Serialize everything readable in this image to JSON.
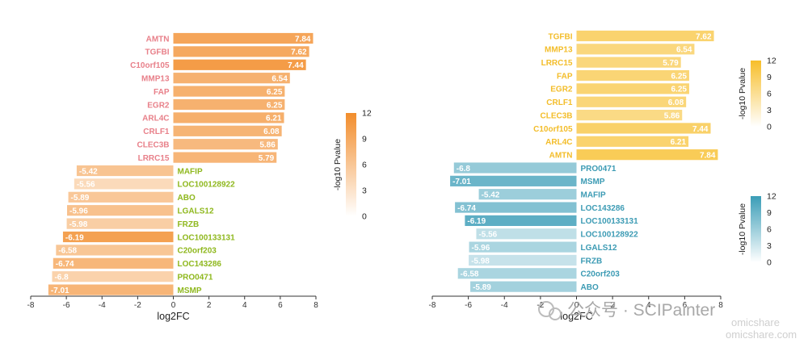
{
  "chart_data": [
    {
      "type": "bar",
      "orientation": "horizontal",
      "xlabel": "log2FC",
      "xlim": [
        -8,
        8
      ],
      "xticks": [
        "-8",
        "-6",
        "-4",
        "-2",
        "0",
        "2",
        "4",
        "6",
        "8"
      ],
      "legend": {
        "title": "-log10 Pvalue",
        "ticks": [
          "12",
          "9",
          "6",
          "3",
          "0"
        ],
        "range": [
          0,
          12
        ],
        "placement": "right"
      },
      "up_label_color": "#e8808a",
      "down_label_color": "#8fb81e",
      "colors": {
        "high": "#f28d2c",
        "low": "#ffffff"
      },
      "categories": [
        "AMTN",
        "TGFBI",
        "C10orf105",
        "MMP13",
        "FAP",
        "EGR2",
        "ARL4C",
        "CRLF1",
        "CLEC3B",
        "LRRC15",
        "MAFIP",
        "LOC100128922",
        "ABO",
        "LGALS12",
        "FRZB",
        "LOC100133131",
        "C20orf203",
        "LOC143286",
        "PRO0471",
        "MSMP"
      ],
      "values": [
        7.84,
        7.62,
        7.44,
        6.54,
        6.25,
        6.25,
        6.21,
        6.08,
        5.86,
        5.79,
        -5.42,
        -5.56,
        -5.89,
        -5.96,
        -5.98,
        -6.19,
        -6.58,
        -6.74,
        -6.8,
        -7.01
      ],
      "value_labels": [
        "7.84",
        "7.62",
        "7.44",
        "6.54",
        "6.25",
        "6.25",
        "6.21",
        "6.08",
        "5.86",
        "5.79",
        "-5.42",
        "-5.56",
        "-5.89",
        "-5.96",
        "-5.98",
        "-6.19",
        "-6.58",
        "-6.74",
        "-6.8",
        "-7.01"
      ],
      "neglog10_pvalue": [
        9.0,
        8.5,
        10.2,
        7.5,
        7.6,
        7.5,
        7.8,
        7.2,
        6.5,
        7.0,
        5.2,
        2.5,
        4.8,
        5.5,
        4.0,
        9.5,
        5.0,
        6.8,
        3.5,
        7.0
      ]
    },
    {
      "type": "bar",
      "orientation": "horizontal",
      "xlabel": "log2FC",
      "xlim": [
        -8,
        8
      ],
      "xticks": [
        "-8",
        "-6",
        "-4",
        "-2",
        "0",
        "2",
        "4",
        "6",
        "8"
      ],
      "up_label_color": "#f3bd2a",
      "down_label_color": "#3c9bb4",
      "up_legend": {
        "title": "-log10 Pvalue",
        "ticks": [
          "12",
          "9",
          "6",
          "3",
          "0"
        ],
        "range": [
          0,
          12
        ],
        "colors": {
          "high": "#f7be2a",
          "low": "#ffffff"
        }
      },
      "down_legend": {
        "title": "-log10 Pvalue",
        "ticks": [
          "12",
          "9",
          "6",
          "3",
          "0"
        ],
        "range": [
          0,
          12
        ],
        "colors": {
          "high": "#3a9db7",
          "low": "#ffffff"
        }
      },
      "categories": [
        "TGFBI",
        "MMP13",
        "LRRC15",
        "FAP",
        "EGR2",
        "CRLF1",
        "CLEC3B",
        "C10orf105",
        "ARL4C",
        "AMTN",
        "PRO0471",
        "MSMP",
        "MAFIP",
        "LOC143286",
        "LOC100133131",
        "LOC100128922",
        "LGALS12",
        "FRZB",
        "C20orf203",
        "ABO"
      ],
      "values": [
        7.62,
        6.54,
        5.79,
        6.25,
        6.25,
        6.08,
        5.86,
        7.44,
        6.21,
        7.84,
        -6.8,
        -7.01,
        -5.42,
        -6.74,
        -6.19,
        -5.56,
        -5.96,
        -5.98,
        -6.58,
        -5.89
      ],
      "value_labels": [
        "7.62",
        "6.54",
        "5.79",
        "6.25",
        "6.25",
        "6.08",
        "5.86",
        "7.44",
        "6.21",
        "7.84",
        "-6.8",
        "-7.01",
        "-5.42",
        "-6.74",
        "-6.19",
        "-5.56",
        "-5.96",
        "-5.98",
        "-6.58",
        "-5.89"
      ],
      "neglog10_pvalue": [
        7.5,
        6.5,
        6.5,
        7.0,
        7.2,
        6.8,
        6.0,
        7.8,
        7.5,
        9.0,
        5.5,
        8.5,
        5.0,
        6.8,
        9.5,
        2.5,
        4.0,
        2.0,
        4.0,
        4.5
      ]
    }
  ],
  "watermark": {
    "line1": "公众号 · SCIPainter",
    "line2": "omicshare",
    "line3": "omicshare.com"
  }
}
